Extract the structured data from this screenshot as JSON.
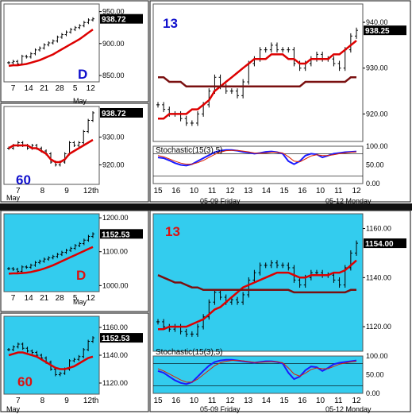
{
  "colors": {
    "top_bg": "#ffffff",
    "bottom_bg": "#33ccee",
    "divider": "#111111",
    "bar": "#000000",
    "ma_red": "#dd0000",
    "ma_dark": "#7a1010",
    "stoch_blue": "#1a1aff",
    "stoch_red": "#dd2200",
    "label_blue": "#1010cc",
    "label_red": "#dd1010"
  },
  "top": {
    "daily": {
      "label": "D",
      "month": "May",
      "price_tag": "938.72",
      "y_ticks": [
        "950.00",
        "900.00",
        "850.00"
      ],
      "x_ticks": [
        "7",
        "14",
        "21",
        "28",
        "5",
        "12"
      ]
    },
    "hourly": {
      "label": "60",
      "price_tag": "938.72",
      "y_ticks": [
        "930.00",
        "920.00"
      ],
      "x_ticks": [
        "7",
        "8",
        "9",
        "12th"
      ],
      "month": "May"
    },
    "min13": {
      "label": "13",
      "price_tag": "938.25",
      "y_ticks": [
        "940.00",
        "930.00",
        "920.00"
      ],
      "stoch_title": "Stochastic(15(3),5)",
      "stoch_ticks": [
        "100.00",
        "50.00",
        "0.00"
      ],
      "x_ticks": [
        "15",
        "16",
        "10",
        "11",
        "12",
        "13",
        "14",
        "15",
        "16",
        "10",
        "11",
        "12"
      ],
      "date_left": "05-09 Friday",
      "date_right": "05-12 Monday"
    }
  },
  "bottom": {
    "daily": {
      "label": "D",
      "month": "May",
      "price_tag": "1152.53",
      "y_ticks": [
        "1200.00",
        "1100.00",
        "1000.00"
      ],
      "x_ticks": [
        "7",
        "14",
        "21",
        "28",
        "5",
        "12"
      ]
    },
    "hourly": {
      "label": "60",
      "price_tag": "1152.53",
      "y_ticks": [
        "1160.00",
        "1140.00",
        "1120.00"
      ],
      "x_ticks": [
        "7",
        "8",
        "9",
        "12th"
      ],
      "month": "May"
    },
    "min13": {
      "label": "13",
      "price_tag": "1154.00",
      "y_ticks": [
        "1160.00",
        "1140.00",
        "1120.00"
      ],
      "stoch_title": "Stochastic(15(3),5)",
      "stoch_ticks": [
        "100.00",
        "50.00",
        "0.00"
      ],
      "x_ticks": [
        "15",
        "16",
        "10",
        "11",
        "12",
        "13",
        "14",
        "15",
        "16",
        "10",
        "11",
        "12"
      ],
      "date_left": "05-09 Friday",
      "date_right": "05-12 Monday"
    }
  },
  "chart_data": [
    {
      "type": "line",
      "title": "",
      "panel": "top-daily",
      "series": [
        {
          "values": [
            870,
            872,
            868,
            880,
            879,
            884,
            890,
            893,
            898,
            901,
            904,
            910,
            914,
            918,
            922,
            925,
            928,
            933,
            937,
            938.72
          ]
        },
        {
          "values": [
            865,
            866,
            866,
            867,
            868,
            870,
            872,
            874,
            877,
            880,
            883,
            887,
            891,
            895,
            899,
            903,
            907,
            912,
            917,
            922
          ]
        }
      ],
      "ylim": [
        840,
        962
      ]
    },
    {
      "type": "line",
      "title": "",
      "panel": "top-hourly",
      "series": [
        {
          "values": [
            926,
            927,
            928,
            927,
            926,
            927,
            926,
            925,
            924,
            921,
            920,
            921,
            924,
            928,
            927,
            928,
            932,
            936,
            938.72
          ]
        },
        {
          "values": [
            926,
            927,
            927,
            927,
            927,
            926,
            926,
            925,
            924,
            922,
            921,
            921,
            922,
            924,
            925,
            926,
            927,
            928,
            929
          ]
        }
      ],
      "ylim": [
        913,
        941
      ]
    },
    {
      "type": "line",
      "title": "",
      "panel": "top-13min",
      "series": [
        {
          "values": [
            922,
            921,
            920,
            920,
            919,
            918,
            918,
            920,
            922,
            925,
            928,
            926,
            925,
            925,
            924,
            927,
            931,
            932,
            934,
            934,
            935,
            934,
            934,
            934,
            931,
            930,
            931,
            932,
            933,
            932,
            932,
            931,
            930,
            934,
            937,
            938.25
          ]
        },
        {
          "values": [
            919,
            919,
            920,
            920,
            920,
            920,
            921,
            921,
            922,
            923,
            925,
            926,
            927,
            928,
            929,
            930,
            931,
            932,
            932,
            932,
            933,
            933,
            933,
            932,
            932,
            931,
            931,
            932,
            932,
            932,
            932,
            933,
            933,
            934,
            935,
            936
          ]
        },
        {
          "values": [
            928,
            928,
            927,
            927,
            927,
            926,
            926,
            926,
            926,
            926,
            926,
            926,
            926,
            926,
            926,
            926,
            926,
            926,
            926,
            926,
            926,
            926,
            926,
            926,
            926,
            926,
            927,
            927,
            927,
            927,
            927,
            927,
            927,
            927,
            928,
            928
          ]
        }
      ],
      "ylim": [
        914,
        944
      ]
    },
    {
      "type": "line",
      "title": "Stochastic(15(3),5)",
      "panel": "top-stoch",
      "series": [
        {
          "values": [
            70,
            68,
            62,
            55,
            50,
            48,
            52,
            60,
            68,
            76,
            84,
            88,
            90,
            90,
            88,
            85,
            83,
            80,
            82,
            85,
            86,
            84,
            80,
            60,
            52,
            60,
            75,
            80,
            78,
            70,
            75,
            80,
            82,
            84,
            85,
            86
          ]
        },
        {
          "values": [
            75,
            72,
            66,
            60,
            55,
            52,
            52,
            56,
            62,
            70,
            78,
            84,
            88,
            89,
            89,
            87,
            85,
            82,
            81,
            82,
            84,
            84,
            82,
            72,
            60,
            58,
            66,
            74,
            77,
            75,
            75,
            77,
            80,
            82,
            84,
            85
          ]
        }
      ],
      "ylim": [
        0,
        100
      ]
    },
    {
      "type": "line",
      "title": "",
      "panel": "bottom-daily",
      "series": [
        {
          "values": [
            1050,
            1048,
            1042,
            1055,
            1054,
            1060,
            1068,
            1072,
            1078,
            1082,
            1086,
            1092,
            1098,
            1104,
            1110,
            1118,
            1124,
            1134,
            1145,
            1152.53
          ]
        },
        {
          "values": [
            1035,
            1036,
            1036,
            1037,
            1038,
            1040,
            1043,
            1046,
            1050,
            1055,
            1060,
            1066,
            1072,
            1078,
            1084,
            1090,
            1096,
            1102,
            1108,
            1114
          ]
        }
      ],
      "ylim": [
        982,
        1212
      ]
    },
    {
      "type": "line",
      "title": "",
      "panel": "bottom-hourly",
      "series": [
        {
          "values": [
            1144,
            1146,
            1148,
            1145,
            1143,
            1142,
            1140,
            1138,
            1135,
            1130,
            1126,
            1127,
            1130,
            1136,
            1137,
            1139,
            1144,
            1150,
            1152.53
          ]
        },
        {
          "values": [
            1140,
            1141,
            1142,
            1142,
            1141,
            1140,
            1139,
            1137,
            1135,
            1133,
            1131,
            1130,
            1130,
            1131,
            1132,
            1134,
            1136,
            1138,
            1139
          ]
        }
      ],
      "ylim": [
        1112,
        1168
      ]
    },
    {
      "type": "line",
      "title": "",
      "panel": "bottom-13min",
      "series": [
        {
          "values": [
            1122,
            1120,
            1119,
            1120,
            1118,
            1117,
            1117,
            1120,
            1124,
            1130,
            1134,
            1132,
            1130,
            1131,
            1130,
            1133,
            1139,
            1142,
            1145,
            1145,
            1146,
            1145,
            1145,
            1144,
            1139,
            1137,
            1140,
            1142,
            1142,
            1141,
            1141,
            1139,
            1137,
            1144,
            1150,
            1154
          ]
        },
        {
          "values": [
            1119,
            1119,
            1120,
            1120,
            1120,
            1120,
            1121,
            1122,
            1123,
            1125,
            1127,
            1128,
            1130,
            1132,
            1134,
            1136,
            1137,
            1138,
            1139,
            1140,
            1141,
            1142,
            1142,
            1142,
            1141,
            1140,
            1140,
            1141,
            1141,
            1141,
            1141,
            1142,
            1142,
            1143,
            1145,
            1147
          ]
        },
        {
          "values": [
            1141,
            1140,
            1139,
            1138,
            1138,
            1137,
            1136,
            1136,
            1135,
            1135,
            1135,
            1135,
            1135,
            1135,
            1135,
            1135,
            1135,
            1135,
            1135,
            1135,
            1135,
            1135,
            1135,
            1135,
            1134,
            1134,
            1134,
            1134,
            1134,
            1134,
            1134,
            1134,
            1134,
            1134,
            1135,
            1135
          ]
        }
      ],
      "ylim": [
        1110,
        1166
      ]
    },
    {
      "type": "line",
      "title": "Stochastic(15(3),5)",
      "panel": "bottom-stoch",
      "series": [
        {
          "values": [
            60,
            55,
            45,
            35,
            28,
            25,
            30,
            45,
            60,
            74,
            84,
            88,
            90,
            90,
            88,
            86,
            84,
            82,
            84,
            86,
            86,
            84,
            80,
            55,
            38,
            45,
            62,
            72,
            70,
            60,
            68,
            78,
            82,
            84,
            86,
            88
          ]
        },
        {
          "values": [
            66,
            60,
            52,
            44,
            36,
            30,
            30,
            38,
            50,
            62,
            74,
            82,
            86,
            88,
            88,
            87,
            85,
            83,
            83,
            84,
            85,
            85,
            82,
            68,
            52,
            46,
            54,
            64,
            68,
            66,
            66,
            72,
            78,
            81,
            84,
            86
          ]
        }
      ],
      "ylim": [
        0,
        100
      ]
    }
  ]
}
